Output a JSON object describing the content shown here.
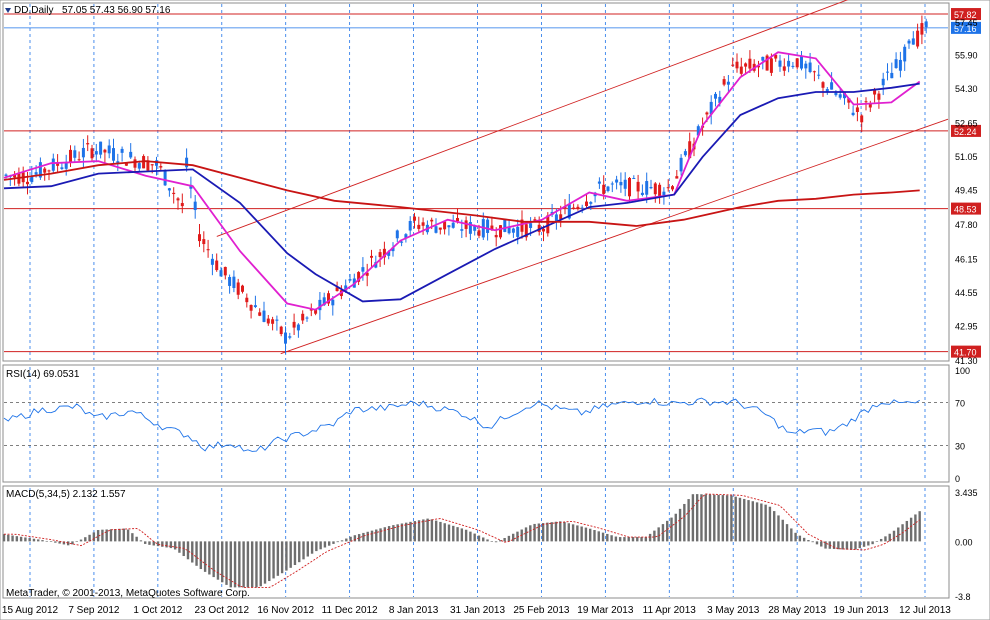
{
  "header": {
    "symbol": "DD,Daily",
    "ohlc": "57.05 57.43 56.90 57.16"
  },
  "watermark": "MetaTrader, © 2001-2013, MetaQuotes Software Corp.",
  "colors": {
    "bull_candle": "#1e73e8",
    "bear_candle": "#e01b1b",
    "ma_fast": "#e020d0",
    "ma_mid": "#1a1ab4",
    "ma_slow": "#c81414",
    "level_line": "#d02020",
    "current_price_line": "#1e73e8",
    "rsi_line": "#1e73e8",
    "macd_hist": "#6e6e6e",
    "macd_signal": "#d02020",
    "grid": "#1e73e8"
  },
  "x_axis_labels": [
    "15 Aug 2012",
    "7 Sep 2012",
    "1 Oct 2012",
    "23 Oct 2012",
    "16 Nov 2012",
    "11 Dec 2012",
    "8 Jan 2013",
    "31 Jan 2013",
    "25 Feb 2013",
    "19 Mar 2013",
    "11 Apr 2013",
    "3 May 2013",
    "28 May 2013",
    "19 Jun 2013",
    "12 Jul 2013"
  ],
  "chart_data": [
    {
      "type": "candlestick",
      "title": "DD,Daily",
      "y_ticks": [
        "57.45",
        "55.90",
        "54.30",
        "52.65",
        "51.05",
        "49.45",
        "47.80",
        "46.15",
        "44.55",
        "42.95",
        "41.30"
      ],
      "ylim": [
        41.3,
        58.3
      ],
      "grid": true,
      "horizontal_levels": [
        {
          "value": 57.82,
          "label": "57.82"
        },
        {
          "value": 52.24,
          "label": "52.24"
        },
        {
          "value": 48.53,
          "label": "48.53"
        },
        {
          "value": 41.7,
          "label": "41.70"
        }
      ],
      "current_price": {
        "value": 57.16,
        "label": "57.16"
      },
      "trend_channel": {
        "upper": [
          [
            "23 Oct 2012",
            47.2
          ],
          [
            "12 Jul 2013",
            60.3
          ]
        ],
        "lower": [
          [
            "16 Nov 2012",
            41.6
          ],
          [
            "12 Jul 2013",
            52.8
          ]
        ]
      },
      "approx_closes": [
        [
          "15 Aug 2012",
          50.1
        ],
        [
          "7 Sep 2012",
          51.4
        ],
        [
          "1 Oct 2012",
          50.6
        ],
        [
          "23 Oct 2012",
          45.5
        ],
        [
          "16 Nov 2012",
          42.4
        ],
        [
          "11 Dec 2012",
          45.0
        ],
        [
          "8 Jan 2013",
          47.8
        ],
        [
          "31 Jan 2013",
          47.6
        ],
        [
          "25 Feb 2013",
          47.6
        ],
        [
          "19 Mar 2013",
          49.6
        ],
        [
          "11 Apr 2013",
          49.5
        ],
        [
          "3 May 2013",
          55.2
        ],
        [
          "28 May 2013",
          55.6
        ],
        [
          "19 Jun 2013",
          53.0
        ],
        [
          "12 Jul 2013",
          57.16
        ]
      ],
      "moving_averages": [
        {
          "name": "fast",
          "values": [
            [
              0,
              50.0
            ],
            [
              0.05,
              50.7
            ],
            [
              0.1,
              50.8
            ],
            [
              0.15,
              50.1
            ],
            [
              0.2,
              49.6
            ],
            [
              0.25,
              46.5
            ],
            [
              0.3,
              44.0
            ],
            [
              0.33,
              43.7
            ],
            [
              0.37,
              44.9
            ],
            [
              0.42,
              47.0
            ],
            [
              0.47,
              48.0
            ],
            [
              0.52,
              47.5
            ],
            [
              0.57,
              48.0
            ],
            [
              0.62,
              49.3
            ],
            [
              0.66,
              48.9
            ],
            [
              0.71,
              49.2
            ],
            [
              0.74,
              52.5
            ],
            [
              0.78,
              54.8
            ],
            [
              0.82,
              56.0
            ],
            [
              0.86,
              55.7
            ],
            [
              0.9,
              53.5
            ],
            [
              0.94,
              53.6
            ],
            [
              0.97,
              54.6
            ]
          ]
        },
        {
          "name": "mid",
          "values": [
            [
              0,
              49.5
            ],
            [
              0.05,
              49.6
            ],
            [
              0.1,
              50.2
            ],
            [
              0.15,
              50.3
            ],
            [
              0.2,
              50.4
            ],
            [
              0.25,
              48.8
            ],
            [
              0.3,
              46.4
            ],
            [
              0.33,
              45.4
            ],
            [
              0.38,
              44.1
            ],
            [
              0.42,
              44.2
            ],
            [
              0.47,
              45.4
            ],
            [
              0.52,
              46.6
            ],
            [
              0.57,
              47.6
            ],
            [
              0.62,
              48.6
            ],
            [
              0.66,
              48.8
            ],
            [
              0.71,
              49.2
            ],
            [
              0.74,
              51.0
            ],
            [
              0.78,
              53.0
            ],
            [
              0.82,
              53.8
            ],
            [
              0.86,
              54.1
            ],
            [
              0.9,
              54.1
            ],
            [
              0.94,
              54.3
            ],
            [
              0.97,
              54.5
            ]
          ]
        },
        {
          "name": "slow",
          "values": [
            [
              0,
              49.9
            ],
            [
              0.05,
              50.2
            ],
            [
              0.1,
              50.6
            ],
            [
              0.15,
              50.8
            ],
            [
              0.2,
              50.6
            ],
            [
              0.25,
              50.0
            ],
            [
              0.3,
              49.4
            ],
            [
              0.35,
              48.9
            ],
            [
              0.42,
              48.6
            ],
            [
              0.5,
              48.2
            ],
            [
              0.55,
              47.9
            ],
            [
              0.62,
              47.9
            ],
            [
              0.67,
              47.7
            ],
            [
              0.72,
              48.0
            ],
            [
              0.78,
              48.6
            ],
            [
              0.82,
              48.9
            ],
            [
              0.86,
              49.0
            ],
            [
              0.9,
              49.2
            ],
            [
              0.94,
              49.3
            ],
            [
              0.97,
              49.4
            ]
          ]
        }
      ]
    },
    {
      "type": "line",
      "title": "RSI(14) 69.0531",
      "y_ticks": [
        "100",
        "70",
        "30",
        "0"
      ],
      "ylim": [
        0,
        100
      ],
      "levels": [
        70,
        30
      ],
      "approx_values": [
        [
          0,
          52
        ],
        [
          0.04,
          63
        ],
        [
          0.08,
          66
        ],
        [
          0.1,
          55
        ],
        [
          0.14,
          62
        ],
        [
          0.18,
          45
        ],
        [
          0.2,
          40
        ],
        [
          0.22,
          28
        ],
        [
          0.25,
          33
        ],
        [
          0.27,
          22
        ],
        [
          0.3,
          35
        ],
        [
          0.33,
          42
        ],
        [
          0.36,
          50
        ],
        [
          0.38,
          63
        ],
        [
          0.42,
          65
        ],
        [
          0.45,
          70
        ],
        [
          0.48,
          64
        ],
        [
          0.5,
          60
        ],
        [
          0.53,
          47
        ],
        [
          0.55,
          58
        ],
        [
          0.58,
          70
        ],
        [
          0.6,
          65
        ],
        [
          0.63,
          60
        ],
        [
          0.66,
          67
        ],
        [
          0.7,
          72
        ],
        [
          0.73,
          69
        ],
        [
          0.76,
          71
        ],
        [
          0.8,
          70
        ],
        [
          0.83,
          60
        ],
        [
          0.86,
          40
        ],
        [
          0.88,
          45
        ],
        [
          0.9,
          42
        ],
        [
          0.92,
          50
        ],
        [
          0.94,
          62
        ],
        [
          0.96,
          72
        ],
        [
          0.97,
          69
        ]
      ]
    },
    {
      "type": "bar",
      "title": "MACD(5,34,5) 2.132 1.557",
      "y_ticks": [
        "3.435",
        "0.00",
        "-3.8"
      ],
      "ylim": [
        -3.8,
        3.435
      ],
      "series": [
        {
          "name": "MACD",
          "approx_values": [
            [
              0,
              0.5
            ],
            [
              0.04,
              0.1
            ],
            [
              0.07,
              -0.3
            ],
            [
              0.1,
              0.8
            ],
            [
              0.13,
              0.9
            ],
            [
              0.15,
              -0.2
            ],
            [
              0.18,
              -0.5
            ],
            [
              0.21,
              -2.0
            ],
            [
              0.24,
              -3.2
            ],
            [
              0.27,
              -3.2
            ],
            [
              0.3,
              -2.0
            ],
            [
              0.33,
              -0.7
            ],
            [
              0.37,
              0.4
            ],
            [
              0.41,
              1.1
            ],
            [
              0.45,
              1.6
            ],
            [
              0.49,
              0.8
            ],
            [
              0.52,
              -0.1
            ],
            [
              0.56,
              1.2
            ],
            [
              0.59,
              1.4
            ],
            [
              0.62,
              0.9
            ],
            [
              0.65,
              0.3
            ],
            [
              0.68,
              0.3
            ],
            [
              0.71,
              1.8
            ],
            [
              0.73,
              3.3
            ],
            [
              0.77,
              3.2
            ],
            [
              0.81,
              2.5
            ],
            [
              0.84,
              0.5
            ],
            [
              0.87,
              -0.5
            ],
            [
              0.9,
              -0.6
            ],
            [
              0.92,
              -0.2
            ],
            [
              0.94,
              0.6
            ],
            [
              0.97,
              2.1
            ]
          ]
        }
      ]
    }
  ]
}
